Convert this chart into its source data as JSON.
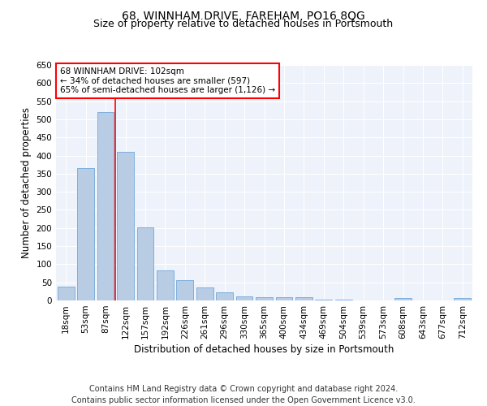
{
  "title": "68, WINNHAM DRIVE, FAREHAM, PO16 8QG",
  "subtitle": "Size of property relative to detached houses in Portsmouth",
  "xlabel": "Distribution of detached houses by size in Portsmouth",
  "ylabel": "Number of detached properties",
  "categories": [
    "18sqm",
    "53sqm",
    "87sqm",
    "122sqm",
    "157sqm",
    "192sqm",
    "226sqm",
    "261sqm",
    "296sqm",
    "330sqm",
    "365sqm",
    "400sqm",
    "434sqm",
    "469sqm",
    "504sqm",
    "539sqm",
    "573sqm",
    "608sqm",
    "643sqm",
    "677sqm",
    "712sqm"
  ],
  "values": [
    38,
    365,
    519,
    410,
    202,
    83,
    55,
    35,
    22,
    11,
    9,
    9,
    9,
    2,
    2,
    0,
    0,
    6,
    0,
    0,
    6
  ],
  "bar_color": "#b8cce4",
  "bar_edge_color": "#6fa8dc",
  "vline_x": 2.5,
  "annotation_box_text": [
    "68 WINNHAM DRIVE: 102sqm",
    "← 34% of detached houses are smaller (597)",
    "65% of semi-detached houses are larger (1,126) →"
  ],
  "annotation_box_color": "white",
  "annotation_box_edge_color": "red",
  "vline_color": "red",
  "ylim": [
    0,
    650
  ],
  "yticks": [
    0,
    50,
    100,
    150,
    200,
    250,
    300,
    350,
    400,
    450,
    500,
    550,
    600,
    650
  ],
  "footnote1": "Contains HM Land Registry data © Crown copyright and database right 2024.",
  "footnote2": "Contains public sector information licensed under the Open Government Licence v3.0.",
  "background_color": "#eef2fa",
  "grid_color": "white",
  "title_fontsize": 10,
  "subtitle_fontsize": 9,
  "xlabel_fontsize": 8.5,
  "ylabel_fontsize": 8.5,
  "tick_fontsize": 7.5,
  "footnote_fontsize": 7,
  "annotation_fontsize": 7.5
}
